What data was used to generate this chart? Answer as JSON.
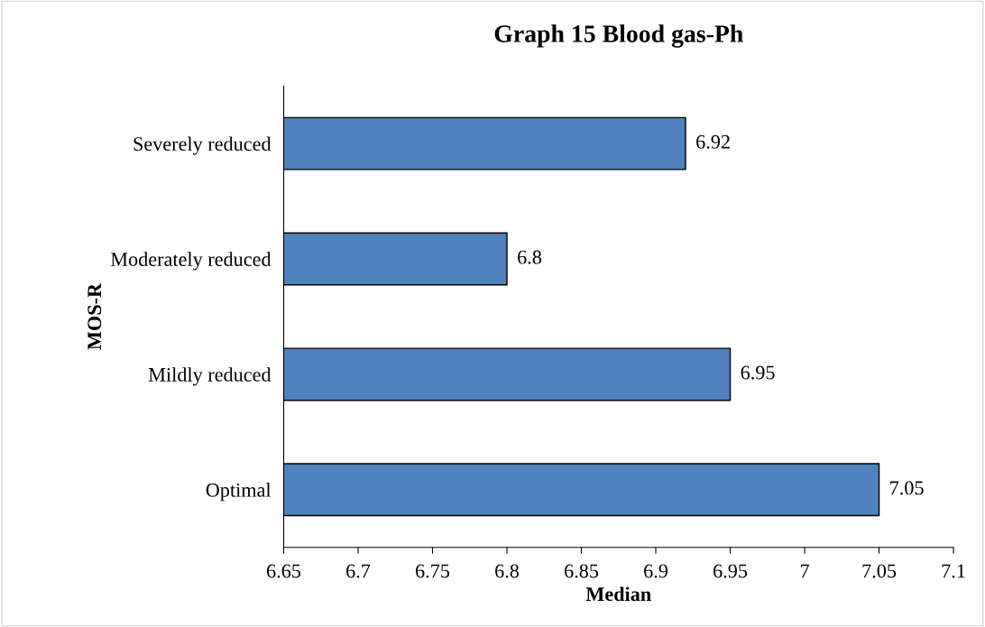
{
  "chart_data": {
    "type": "bar",
    "orientation": "horizontal",
    "title": "Graph 15 Blood gas-Ph",
    "xlabel": "Median",
    "ylabel": "MOS-R",
    "categories": [
      "Severely reduced",
      "Moderately reduced",
      "Mildly reduced",
      "Optimal"
    ],
    "values": [
      6.92,
      6.8,
      6.95,
      7.05
    ],
    "color": "#4f81bd",
    "data_labels": true,
    "xlim": [
      6.65,
      7.1
    ],
    "xticks": [
      6.65,
      6.7,
      6.75,
      6.8,
      6.85,
      6.9,
      6.95,
      7,
      7.05,
      7.1
    ],
    "grid": false,
    "legend": false
  }
}
